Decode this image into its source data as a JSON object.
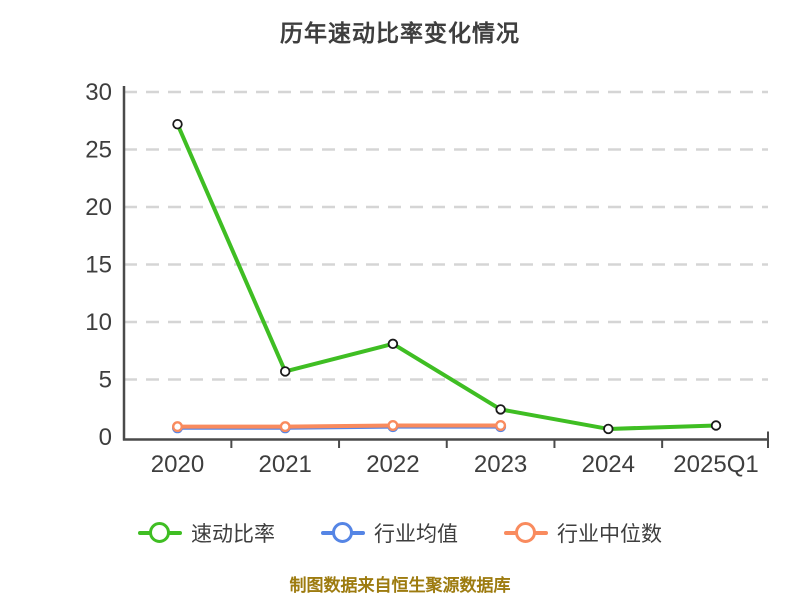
{
  "title": "历年速动比率变化情况",
  "footer": {
    "source_note": "制图数据来自恒生聚源数据库",
    "color": "#9d7b0f"
  },
  "style_colors": {
    "title_text": "#3e3e3e",
    "axis_line": "#4a4a4a",
    "axis_label": "#3e3e3e",
    "gridline": "#d5d5d5",
    "legend_text": "#3e3e3e",
    "background": "#ffffff"
  },
  "chart_data": {
    "type": "line",
    "title": "历年速动比率变化情况",
    "categories": [
      "2020",
      "2021",
      "2022",
      "2023",
      "2024",
      "2025Q1"
    ],
    "series": [
      {
        "name": "行业均值",
        "color": "#5585e5",
        "marker_border": "#5585e5",
        "values": [
          0.8,
          0.8,
          0.9,
          0.9,
          null,
          null
        ]
      },
      {
        "name": "行业中位数",
        "color": "#f98b5e",
        "marker_border": "#f98b5e",
        "values": [
          0.9,
          0.9,
          1.0,
          1.0,
          null,
          null
        ]
      },
      {
        "name": "速动比率",
        "color": "#3fbe23",
        "marker_border": "#1a1a1a",
        "values": [
          27.2,
          5.7,
          8.1,
          2.4,
          0.7,
          1.0
        ]
      }
    ],
    "legend_order": [
      "速动比率",
      "行业均值",
      "行业中位数"
    ],
    "xlabel": "",
    "ylabel": "",
    "ylim": [
      0,
      30
    ],
    "yticks": [
      0,
      5,
      10,
      15,
      20,
      25,
      30
    ],
    "grid": "horizontal-dashed",
    "legend_position": "bottom"
  }
}
